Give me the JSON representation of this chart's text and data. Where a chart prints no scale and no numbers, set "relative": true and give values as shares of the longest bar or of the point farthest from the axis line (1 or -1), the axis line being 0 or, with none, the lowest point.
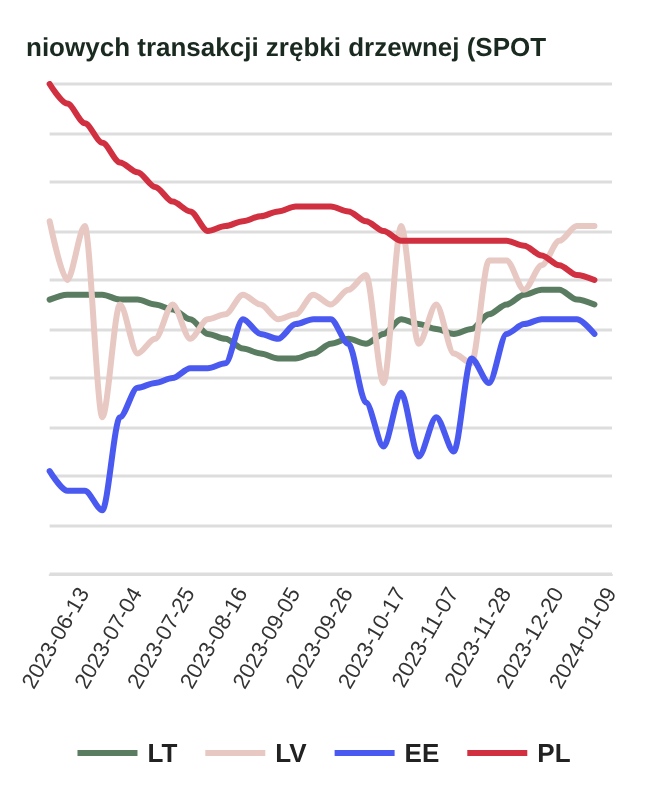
{
  "chart_data": {
    "type": "line",
    "relative": true,
    "title": "niowych transakcji zrębki drzewnej (SPOT",
    "categories": [
      null,
      null,
      "2023-06-13",
      null,
      null,
      "2023-07-04",
      null,
      null,
      "2023-07-25",
      null,
      null,
      "2023-08-16",
      null,
      null,
      "2023-09-05",
      null,
      null,
      "2023-09-26",
      null,
      null,
      "2023-10-17",
      null,
      null,
      "2023-11-07",
      null,
      null,
      "2023-11-28",
      null,
      null,
      "2023-12-20",
      null,
      null,
      "2024-01-09"
    ],
    "series": [
      {
        "name": "LT",
        "color": "#5a7d62",
        "values": [
          0.56,
          0.57,
          0.57,
          0.57,
          0.56,
          0.56,
          0.55,
          0.54,
          0.52,
          0.49,
          0.48,
          0.46,
          0.45,
          0.44,
          0.44,
          0.45,
          0.47,
          0.48,
          0.47,
          0.49,
          0.52,
          0.51,
          0.5,
          0.49,
          0.5,
          0.53,
          0.55,
          0.57,
          0.58,
          0.58,
          0.56,
          0.55,
          null
        ]
      },
      {
        "name": "LV",
        "color": "#e8c8c2",
        "values": [
          0.72,
          0.6,
          0.71,
          0.32,
          0.55,
          0.45,
          0.48,
          0.55,
          0.48,
          0.52,
          0.53,
          0.57,
          0.55,
          0.52,
          0.53,
          0.57,
          0.55,
          0.58,
          0.61,
          0.39,
          0.71,
          0.47,
          0.55,
          0.45,
          0.43,
          0.64,
          0.64,
          0.58,
          0.63,
          0.68,
          0.71,
          0.71,
          null
        ]
      },
      {
        "name": "EE",
        "color": "#4a5af0",
        "values": [
          0.21,
          0.17,
          0.17,
          0.13,
          0.32,
          0.38,
          0.39,
          0.4,
          0.42,
          0.42,
          0.43,
          0.52,
          0.49,
          0.48,
          0.51,
          0.52,
          0.52,
          0.47,
          0.35,
          0.26,
          0.37,
          0.24,
          0.32,
          0.25,
          0.44,
          0.39,
          0.49,
          0.51,
          0.52,
          0.52,
          0.52,
          0.49,
          null
        ]
      },
      {
        "name": "PL",
        "color": "#d03040",
        "values": [
          1.0,
          0.96,
          0.92,
          0.88,
          0.84,
          0.82,
          0.79,
          0.76,
          0.74,
          0.7,
          0.71,
          0.72,
          0.73,
          0.74,
          0.75,
          0.75,
          0.75,
          0.74,
          0.72,
          0.7,
          0.68,
          0.68,
          0.68,
          0.68,
          0.68,
          0.68,
          0.68,
          0.67,
          0.65,
          0.63,
          0.61,
          0.6,
          null
        ]
      }
    ],
    "grid": "y",
    "legend": "bottom",
    "marker": "none",
    "line_style": "solid"
  }
}
